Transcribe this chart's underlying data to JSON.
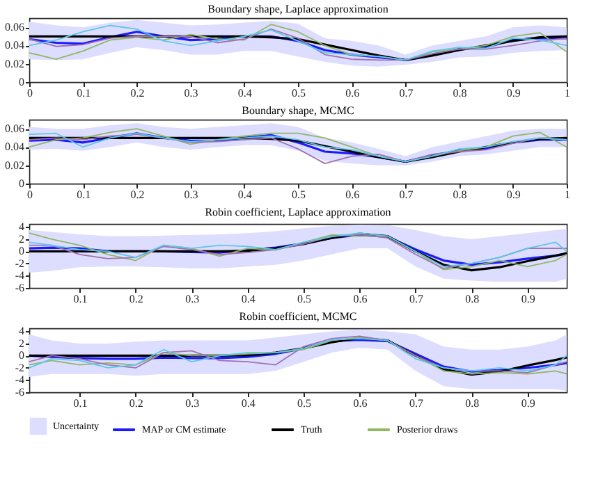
{
  "chart_data": [
    {
      "type": "line",
      "title": "Boundary shape, Laplace approximation",
      "x": [
        0,
        0.05,
        0.1,
        0.15,
        0.2,
        0.25,
        0.3,
        0.35,
        0.4,
        0.45,
        0.5,
        0.55,
        0.6,
        0.65,
        0.7,
        0.75,
        0.8,
        0.85,
        0.9,
        0.95,
        1
      ],
      "xlim": [
        0,
        1
      ],
      "xticks": [
        0,
        0.1,
        0.2,
        0.3,
        0.4,
        0.5,
        0.6,
        0.7,
        0.8,
        0.9,
        1
      ],
      "ylim": [
        0,
        0.07
      ],
      "yticks": [
        0,
        0.02,
        0.04,
        0.06
      ],
      "series": [
        {
          "color": "#1a1aff",
          "values": [
            0.047,
            0.043,
            0.042,
            0.049,
            0.055,
            0.05,
            0.046,
            0.047,
            0.05,
            0.05,
            0.045,
            0.035,
            0.03,
            0.027,
            0.024,
            0.03,
            0.036,
            0.038,
            0.046,
            0.048,
            0.048
          ],
          "lower": [
            0.025,
            0.024,
            0.025,
            0.032,
            0.038,
            0.035,
            0.03,
            0.03,
            0.034,
            0.034,
            0.028,
            0.022,
            0.018,
            0.017,
            0.019,
            0.022,
            0.027,
            0.028,
            0.032,
            0.034,
            0.035
          ],
          "upper": [
            0.066,
            0.062,
            0.06,
            0.065,
            0.068,
            0.065,
            0.062,
            0.063,
            0.065,
            0.067,
            0.064,
            0.048,
            0.045,
            0.04,
            0.03,
            0.04,
            0.045,
            0.05,
            0.06,
            0.062,
            0.06
          ]
        },
        {
          "color": "#000000",
          "values": [
            0.05,
            0.05,
            0.05,
            0.05,
            0.05,
            0.05,
            0.05,
            0.05,
            0.05,
            0.049,
            0.047,
            0.041,
            0.035,
            0.029,
            0.024,
            0.029,
            0.035,
            0.04,
            0.045,
            0.049,
            0.05
          ]
        },
        {
          "color": "#90b860",
          "values": [
            0.032,
            0.025,
            0.034,
            0.046,
            0.049,
            0.046,
            0.052,
            0.047,
            0.046,
            0.063,
            0.055,
            0.04,
            0.03,
            0.028,
            0.024,
            0.033,
            0.036,
            0.04,
            0.05,
            0.054,
            0.033
          ]
        },
        {
          "color": "#a070b0",
          "values": [
            0.047,
            0.039,
            0.041,
            0.048,
            0.05,
            0.05,
            0.05,
            0.043,
            0.047,
            0.058,
            0.048,
            0.03,
            0.025,
            0.024,
            0.024,
            0.031,
            0.036,
            0.036,
            0.04,
            0.045,
            0.048
          ]
        },
        {
          "color": "#5bc8e8",
          "values": [
            0.04,
            0.046,
            0.055,
            0.062,
            0.058,
            0.045,
            0.04,
            0.045,
            0.05,
            0.057,
            0.045,
            0.032,
            0.03,
            0.028,
            0.024,
            0.034,
            0.038,
            0.037,
            0.048,
            0.046,
            0.04
          ]
        }
      ]
    },
    {
      "type": "line",
      "title": "Boundary shape, MCMC",
      "x": [
        0,
        0.05,
        0.1,
        0.15,
        0.2,
        0.25,
        0.3,
        0.35,
        0.4,
        0.45,
        0.5,
        0.55,
        0.6,
        0.65,
        0.7,
        0.75,
        0.8,
        0.85,
        0.9,
        0.95,
        1
      ],
      "xlim": [
        0,
        1
      ],
      "xticks": [
        0,
        0.1,
        0.2,
        0.3,
        0.4,
        0.5,
        0.6,
        0.7,
        0.8,
        0.9,
        1
      ],
      "ylim": [
        0,
        0.07
      ],
      "yticks": [
        0,
        0.02,
        0.04,
        0.06
      ],
      "series": [
        {
          "color": "#1a1aff",
          "values": [
            0.047,
            0.048,
            0.045,
            0.05,
            0.055,
            0.05,
            0.047,
            0.047,
            0.05,
            0.053,
            0.045,
            0.035,
            0.033,
            0.029,
            0.024,
            0.031,
            0.036,
            0.038,
            0.045,
            0.048,
            0.048
          ],
          "lower": [
            0.037,
            0.038,
            0.036,
            0.04,
            0.045,
            0.04,
            0.037,
            0.04,
            0.042,
            0.042,
            0.036,
            0.025,
            0.022,
            0.02,
            0.02,
            0.024,
            0.03,
            0.032,
            0.036,
            0.04,
            0.04
          ],
          "upper": [
            0.062,
            0.06,
            0.06,
            0.064,
            0.066,
            0.062,
            0.06,
            0.062,
            0.064,
            0.066,
            0.062,
            0.05,
            0.045,
            0.038,
            0.03,
            0.04,
            0.046,
            0.052,
            0.058,
            0.06,
            0.06
          ]
        },
        {
          "color": "#000000",
          "values": [
            0.05,
            0.05,
            0.05,
            0.05,
            0.05,
            0.05,
            0.05,
            0.05,
            0.05,
            0.049,
            0.047,
            0.041,
            0.035,
            0.029,
            0.024,
            0.029,
            0.035,
            0.04,
            0.045,
            0.049,
            0.05
          ]
        },
        {
          "color": "#90b860",
          "values": [
            0.04,
            0.048,
            0.05,
            0.056,
            0.06,
            0.052,
            0.043,
            0.048,
            0.052,
            0.055,
            0.055,
            0.05,
            0.04,
            0.03,
            0.024,
            0.03,
            0.036,
            0.04,
            0.052,
            0.056,
            0.04
          ]
        },
        {
          "color": "#a070b0",
          "values": [
            0.048,
            0.05,
            0.048,
            0.052,
            0.054,
            0.05,
            0.045,
            0.046,
            0.048,
            0.05,
            0.038,
            0.022,
            0.03,
            0.032,
            0.024,
            0.032,
            0.035,
            0.037,
            0.044,
            0.05,
            0.048
          ]
        },
        {
          "color": "#5bc8e8",
          "values": [
            0.054,
            0.055,
            0.04,
            0.05,
            0.055,
            0.05,
            0.046,
            0.048,
            0.05,
            0.052,
            0.048,
            0.04,
            0.037,
            0.03,
            0.024,
            0.03,
            0.038,
            0.04,
            0.046,
            0.05,
            0.048
          ]
        }
      ]
    },
    {
      "type": "line",
      "title": "Robin coefficient, Laplace approximation",
      "x": [
        0.01,
        0.05,
        0.1,
        0.15,
        0.2,
        0.25,
        0.3,
        0.35,
        0.4,
        0.45,
        0.5,
        0.55,
        0.6,
        0.65,
        0.7,
        0.75,
        0.8,
        0.85,
        0.9,
        0.95,
        0.97
      ],
      "xlim": [
        0.01,
        0.97
      ],
      "xticks": [
        0.1,
        0.2,
        0.3,
        0.4,
        0.5,
        0.6,
        0.7,
        0.8,
        0.9
      ],
      "ylim": [
        -6,
        4.5
      ],
      "yticks": [
        -6,
        -4,
        -2,
        0,
        2,
        4
      ],
      "series": [
        {
          "color": "#1a1aff",
          "values": [
            0.5,
            0.6,
            0.5,
            0,
            0,
            0,
            -0.1,
            -0.2,
            0.2,
            0.6,
            1.3,
            2.2,
            2.7,
            2.4,
            0.3,
            -1.5,
            -2.2,
            -1.8,
            -1.2,
            -0.7,
            -0.4
          ],
          "lower": [
            -3.5,
            -3.2,
            -2.6,
            -2.5,
            -2.5,
            -2.6,
            -2.8,
            -2.8,
            -2.5,
            -2.2,
            -1.5,
            -0.5,
            0.5,
            0.5,
            -2.5,
            -4.5,
            -4.8,
            -5,
            -5,
            -5,
            -4.5
          ],
          "upper": [
            3.5,
            3.2,
            2.8,
            2.5,
            2.5,
            2.6,
            2.7,
            2.8,
            3,
            3.3,
            3.8,
            4.2,
            4.4,
            4.3,
            3.5,
            2.5,
            2,
            2.5,
            3,
            3.5,
            3.7
          ]
        },
        {
          "color": "#000000",
          "values": [
            0,
            0,
            0,
            0,
            0,
            0,
            0,
            0,
            0.1,
            0.5,
            1.2,
            2.2,
            2.9,
            2.5,
            0,
            -2.2,
            -3.1,
            -2.6,
            -1.6,
            -0.7,
            -0.3
          ]
        },
        {
          "color": "#90b860",
          "values": [
            3,
            2,
            1,
            -0.5,
            -1.5,
            1,
            0.5,
            -0.8,
            0.5,
            0.2,
            1.5,
            2.7,
            2.5,
            2.5,
            0,
            -3,
            -2.5,
            -1.5,
            -2.5,
            -1.5,
            -0.5
          ]
        },
        {
          "color": "#a070b0",
          "values": [
            1,
            1,
            -0.5,
            -1.2,
            -1,
            0.8,
            0.3,
            -0.5,
            -0.2,
            0.3,
            1.2,
            2.5,
            2.8,
            2.2,
            -0.5,
            -2.8,
            -2,
            -1,
            0.5,
            0.5,
            0.5
          ]
        },
        {
          "color": "#5bc8e8",
          "values": [
            1.5,
            1,
            0.3,
            0,
            -1,
            1,
            0.5,
            1,
            0.8,
            0.3,
            1.5,
            2.4,
            3,
            2.5,
            0,
            -2.5,
            -2,
            -1,
            0.5,
            1.5,
            0
          ]
        }
      ]
    },
    {
      "type": "line",
      "title": "Robin coefficient, MCMC",
      "x": [
        0.01,
        0.05,
        0.1,
        0.15,
        0.2,
        0.25,
        0.3,
        0.35,
        0.4,
        0.45,
        0.5,
        0.55,
        0.6,
        0.65,
        0.7,
        0.75,
        0.8,
        0.85,
        0.9,
        0.95,
        0.97
      ],
      "xlim": [
        0.01,
        0.97
      ],
      "xticks": [
        0.1,
        0.2,
        0.3,
        0.4,
        0.5,
        0.6,
        0.7,
        0.8,
        0.9
      ],
      "ylim": [
        -6,
        4.5
      ],
      "yticks": [
        -6,
        -4,
        -2,
        0,
        2,
        4
      ],
      "legend": "bottom",
      "annotations": [
        "Uncertainty"
      ],
      "series": [
        {
          "name": "MAP or CM estimate",
          "color": "#1a1aff",
          "values": [
            0,
            -0.2,
            -0.4,
            -0.5,
            -0.5,
            -0.3,
            -0.4,
            -0.4,
            -0.2,
            0.3,
            1.2,
            2.4,
            2.6,
            2.4,
            0.3,
            -1.8,
            -2.6,
            -2.4,
            -2,
            -1.5,
            -1.2
          ],
          "lower": [
            -3.5,
            -3,
            -3,
            -3,
            -3.3,
            -3,
            -3,
            -3,
            -3,
            -2.5,
            -1,
            0.5,
            1.3,
            1,
            -2.5,
            -5,
            -5.5,
            -5.5,
            -5.5,
            -5.5,
            -5.8
          ],
          "upper": [
            3.5,
            2.5,
            2,
            2,
            2.3,
            2.5,
            2.5,
            2.5,
            2.5,
            3,
            3.5,
            4,
            4.3,
            4,
            3.5,
            1.5,
            1,
            1,
            1.5,
            2.5,
            3.5
          ]
        },
        {
          "name": "Truth",
          "color": "#000000",
          "values": [
            0,
            0,
            0,
            0,
            0,
            0,
            0,
            0,
            0.1,
            0.5,
            1.2,
            2.2,
            2.9,
            2.5,
            0,
            -2.2,
            -3.1,
            -2.6,
            -1.6,
            -0.7,
            -0.3
          ]
        },
        {
          "name": "Posterior draws",
          "color": "#90b860",
          "values": [
            -1.5,
            -0.8,
            -1.5,
            -1.2,
            -1.5,
            0.5,
            0,
            0,
            0.3,
            0.5,
            1,
            2.5,
            3,
            2.5,
            0,
            -2.5,
            -3,
            -2.8,
            -3,
            -2.5,
            -3
          ]
        },
        {
          "color": "#a070b0",
          "values": [
            -1,
            0,
            -0.5,
            -1.5,
            -2,
            0.5,
            0.8,
            -0.8,
            -1,
            -1.5,
            1.5,
            2.8,
            3.2,
            2.5,
            0,
            -2,
            -2.5,
            -2.5,
            -2.8,
            -1.5,
            -1
          ]
        },
        {
          "color": "#5bc8e8",
          "values": [
            -2,
            -0.5,
            -0.8,
            -2,
            -1.5,
            1,
            -1,
            0,
            0.5,
            0.5,
            1.2,
            2.6,
            2.8,
            2.5,
            -0.5,
            -2,
            -2.5,
            -2,
            -2.5,
            -1.5,
            0
          ]
        }
      ]
    }
  ]
}
